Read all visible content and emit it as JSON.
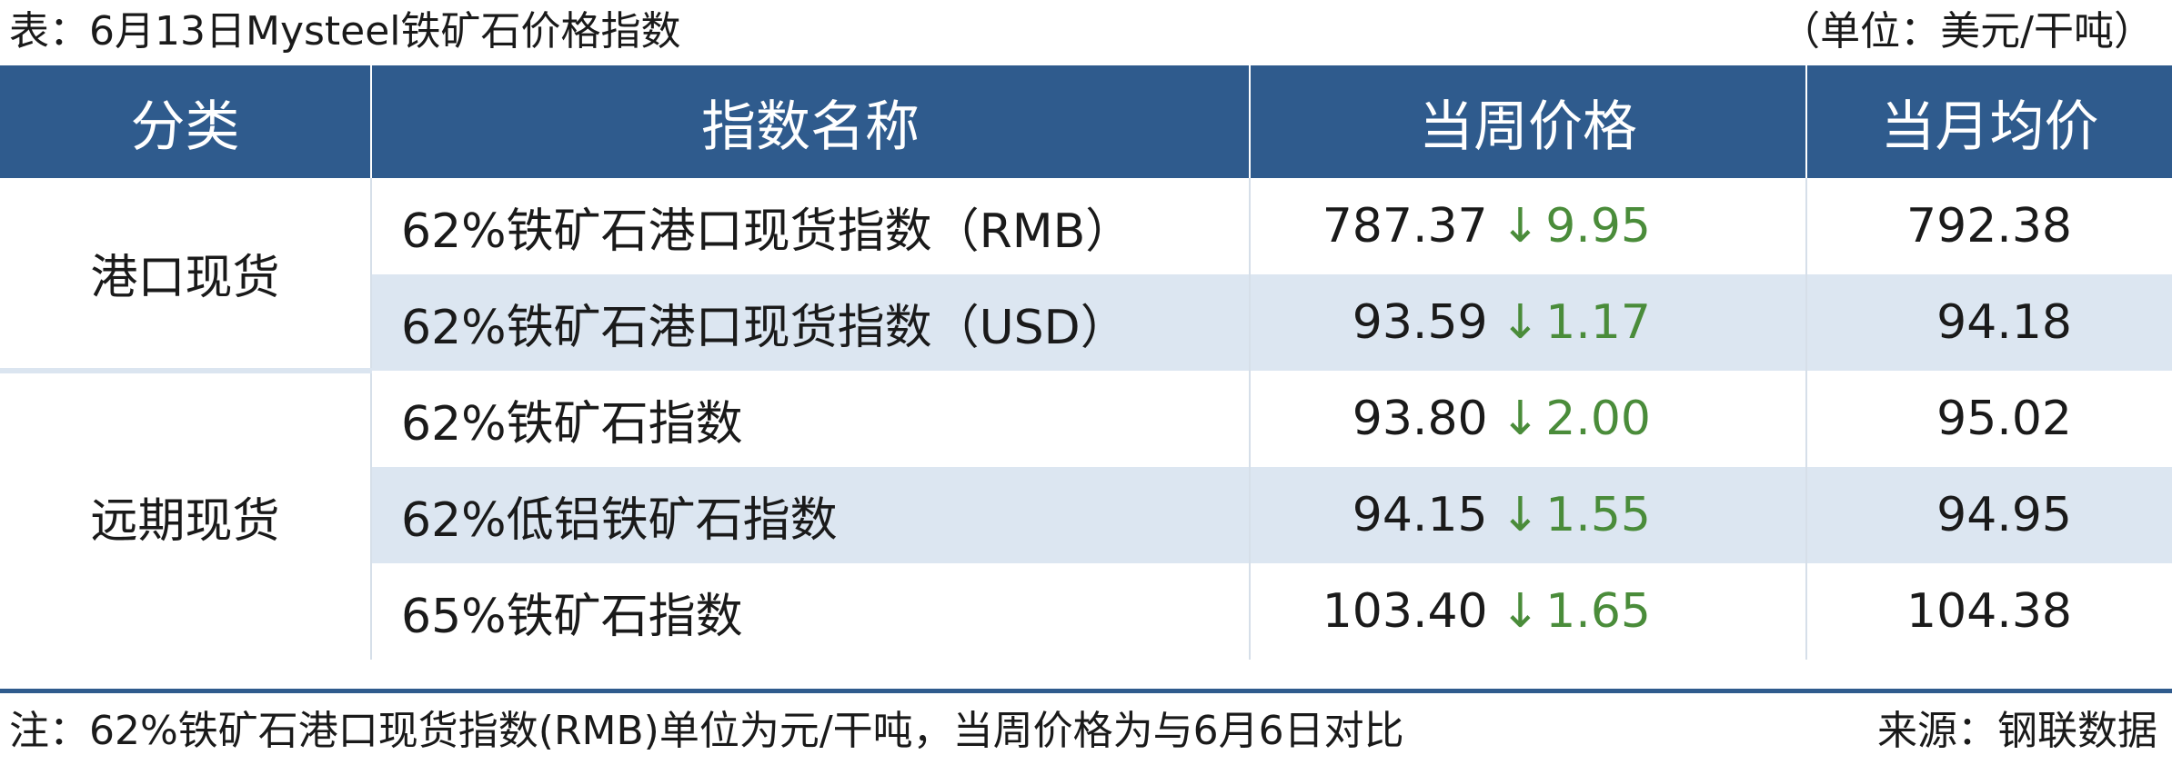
{
  "caption": {
    "title": "表：6月13日Mysteel铁矿石价格指数",
    "unit": "（单位：美元/干吨）"
  },
  "table": {
    "headers": [
      "分类",
      "指数名称",
      "当周价格",
      "当月均价"
    ],
    "groups": [
      {
        "category": "港口现货",
        "rows": [
          {
            "name": "62%铁矿石港口现货指数（RMB）",
            "price": "787.37",
            "direction": "↓",
            "change": "9.95",
            "avg": "792.38"
          },
          {
            "name": "62%铁矿石港口现货指数（USD）",
            "price": "93.59",
            "direction": "↓",
            "change": "1.17",
            "avg": "94.18"
          }
        ]
      },
      {
        "category": "远期现货",
        "rows": [
          {
            "name": "62%铁矿石指数",
            "price": "93.80",
            "direction": "↓",
            "change": "2.00",
            "avg": "95.02"
          },
          {
            "name": "62%低铝铁矿石指数",
            "price": "94.15",
            "direction": "↓",
            "change": "1.55",
            "avg": "94.95"
          },
          {
            "name": "65%铁矿石指数",
            "price": "103.40",
            "direction": "↓",
            "change": "1.65",
            "avg": "104.38"
          }
        ]
      }
    ]
  },
  "footer": {
    "note": "注：62%铁矿石港口现货指数(RMB)单位为元/干吨，当周价格为与6月6日对比",
    "source": "来源：钢联数据"
  },
  "colors": {
    "header_bg": "#2f5b8d",
    "row_shade": "#dce6f1",
    "down_change": "#4a8c3a"
  }
}
